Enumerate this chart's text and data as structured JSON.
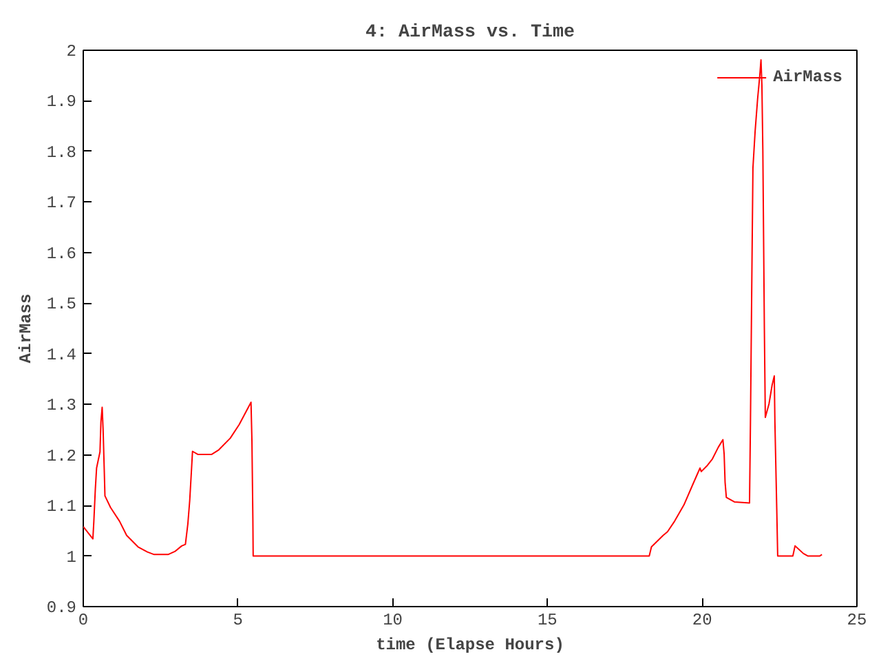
{
  "chart_data": {
    "type": "line",
    "title": "4: AirMass vs. Time",
    "xlabel": "time (Elapse Hours)",
    "ylabel": "AirMass",
    "xlim": [
      0,
      25
    ],
    "xticks": [
      0,
      5,
      10,
      15,
      20,
      25
    ],
    "ylim": [
      0.9,
      2
    ],
    "yticks": [
      0.9,
      1,
      1.1,
      1.2,
      1.3,
      1.4,
      1.5,
      1.6,
      1.7,
      1.8,
      1.9,
      2
    ],
    "grid": false,
    "legend": "top right",
    "marker": "none",
    "line_style": "solid",
    "series": [
      {
        "name": "AirMass",
        "color": "#ff0000",
        "x": [
          0,
          0.31,
          0.34,
          0.39,
          0.43,
          0.54,
          0.57,
          0.61,
          0.64,
          0.68,
          0.7,
          0.88,
          1.17,
          1.4,
          1.77,
          2.07,
          2.29,
          2.74,
          2.96,
          3.18,
          3.3,
          3.38,
          3.44,
          3.5,
          3.53,
          3.7,
          4.15,
          4.38,
          4.75,
          5.04,
          5.42,
          5.45,
          5.48,
          5.49,
          18.29,
          18.36,
          18.74,
          18.88,
          19.11,
          19.41,
          19.7,
          19.93,
          19.97,
          20.15,
          20.33,
          20.52,
          20.67,
          20.71,
          20.74,
          20.78,
          21.04,
          21.53,
          21.56,
          21.61,
          21.64,
          21.71,
          21.79,
          21.86,
          21.9,
          21.93,
          21.96,
          22.01,
          22.04,
          22.16,
          22.26,
          22.33,
          22.35,
          22.41,
          22.44,
          22.93,
          23.0,
          23.27,
          23.42,
          23.8,
          23.87
        ],
        "values": [
          1.058,
          1.034,
          1.067,
          1.133,
          1.174,
          1.206,
          1.265,
          1.294,
          1.251,
          1.165,
          1.119,
          1.096,
          1.069,
          1.041,
          1.018,
          1.008,
          1.003,
          1.003,
          1.009,
          1.02,
          1.023,
          1.064,
          1.11,
          1.174,
          1.207,
          1.201,
          1.201,
          1.21,
          1.233,
          1.26,
          1.304,
          1.228,
          1.075,
          1.0,
          1.0,
          1.018,
          1.041,
          1.048,
          1.069,
          1.101,
          1.142,
          1.174,
          1.167,
          1.178,
          1.192,
          1.215,
          1.23,
          1.201,
          1.146,
          1.116,
          1.107,
          1.105,
          1.265,
          1.584,
          1.767,
          1.839,
          1.903,
          1.949,
          1.981,
          1.931,
          1.803,
          1.447,
          1.274,
          1.301,
          1.338,
          1.356,
          1.265,
          1.092,
          1.0,
          1.0,
          1.02,
          1.005,
          1.0,
          1.0,
          1.003
        ]
      }
    ]
  }
}
